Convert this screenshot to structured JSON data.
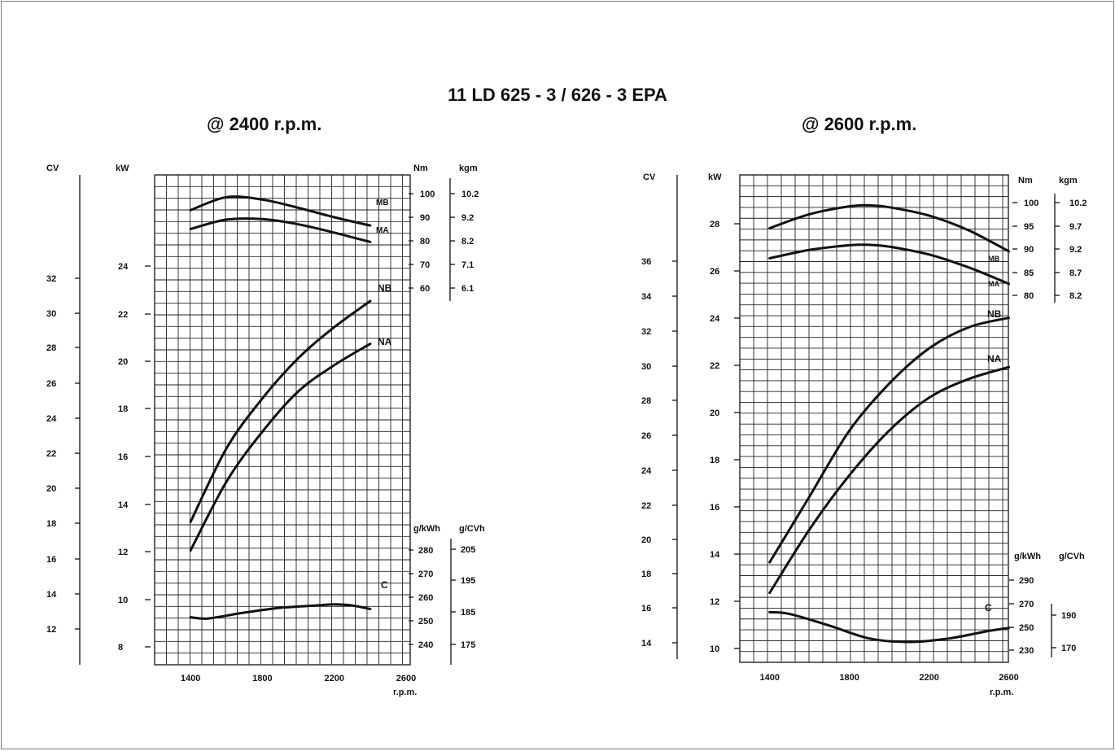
{
  "title": "11 LD 625 - 3 / 626 - 3 EPA",
  "colors": {
    "ink": "#111111",
    "grid": "#222222",
    "background": "#ffffff"
  },
  "chart_data": [
    {
      "type": "line",
      "subtitle": "@ 2400 r.p.m.",
      "xlabel": "r.p.m.",
      "x_ticks": [
        1400,
        1800,
        2200,
        2600
      ],
      "xlim": [
        1200,
        2600
      ],
      "grid": true,
      "axis_headers": {
        "cv": "CV",
        "kw": "kW",
        "nm": "Nm",
        "kgm": "kgm",
        "gkwh": "g/kWh",
        "gcvh": "g/CVh"
      },
      "axes": {
        "cv": {
          "ticks": [
            "32",
            "30",
            "28",
            "26",
            "24",
            "22",
            "20",
            "18",
            "16",
            "14",
            "12"
          ]
        },
        "kw": {
          "ticks": [
            "24",
            "22",
            "20",
            "18",
            "16",
            "14",
            "12",
            "10",
            "8"
          ]
        },
        "nm": {
          "ticks": [
            "100",
            "90",
            "80",
            "70",
            "60"
          ]
        },
        "kgm": {
          "ticks": [
            "10.2",
            "9.2",
            "8.2",
            "7.1",
            "6.1"
          ]
        },
        "gkwh": {
          "ticks": [
            "280",
            "270",
            "260",
            "250",
            "240"
          ]
        },
        "gcvh": {
          "ticks": [
            "205",
            "195",
            "185",
            "175"
          ]
        }
      },
      "series": [
        {
          "name": "MB",
          "axis": "Nm",
          "x": [
            1400,
            1600,
            1800,
            2000,
            2200,
            2400
          ],
          "y": [
            93,
            98.5,
            97.5,
            94,
            90,
            86.5
          ]
        },
        {
          "name": "MA",
          "axis": "Nm",
          "x": [
            1400,
            1600,
            1800,
            2000,
            2200,
            2400
          ],
          "y": [
            85,
            89,
            89.2,
            87,
            83.5,
            79.5
          ]
        },
        {
          "name": "NB",
          "axis": "kW",
          "x": [
            1400,
            1600,
            1800,
            2000,
            2200,
            2400
          ],
          "y": [
            13.5,
            16.6,
            18.7,
            20.4,
            21.7,
            22.8
          ]
        },
        {
          "name": "NA",
          "axis": "kW",
          "x": [
            1400,
            1600,
            1800,
            2000,
            2200,
            2400
          ],
          "y": [
            12.3,
            15.2,
            17.3,
            19,
            20.1,
            21.0
          ]
        },
        {
          "name": "C",
          "axis": "g/kWh",
          "x": [
            1400,
            1500,
            1700,
            1900,
            2100,
            2200,
            2300,
            2400
          ],
          "y": [
            251.5,
            251,
            253.5,
            255.5,
            256.5,
            257,
            256.5,
            255
          ]
        }
      ]
    },
    {
      "type": "line",
      "subtitle": "@ 2600 r.p.m.",
      "xlabel": "r.p.m.",
      "x_ticks": [
        1400,
        1800,
        2200,
        2600
      ],
      "xlim": [
        1250,
        2700
      ],
      "grid": true,
      "axis_headers": {
        "cv": "CV",
        "kw": "kW",
        "nm": "Nm",
        "kgm": "kgm",
        "gkwh": "g/kWh",
        "gcvh": "g/CVh"
      },
      "axes": {
        "cv": {
          "ticks": [
            "36",
            "34",
            "32",
            "30",
            "28",
            "26",
            "24",
            "22",
            "20",
            "18",
            "16",
            "14"
          ]
        },
        "kw": {
          "ticks": [
            "28",
            "26",
            "24",
            "22",
            "20",
            "18",
            "16",
            "14",
            "12",
            "10"
          ]
        },
        "nm": {
          "ticks": [
            "100",
            "95",
            "90",
            "85",
            "80"
          ]
        },
        "kgm": {
          "ticks": [
            "10.2",
            "9.7",
            "9.2",
            "8.7",
            "8.2"
          ]
        },
        "gkwh": {
          "ticks": [
            "290",
            "270",
            "250",
            "230"
          ]
        },
        "gcvh": {
          "ticks": [
            "190",
            "170"
          ]
        }
      },
      "series": [
        {
          "name": "MB",
          "axis": "Nm",
          "x": [
            1400,
            1600,
            1800,
            1900,
            2000,
            2200,
            2400,
            2600
          ],
          "y": [
            94.5,
            97.5,
            99.2,
            99.4,
            99,
            97.2,
            94,
            89.5
          ]
        },
        {
          "name": "MA",
          "axis": "Nm",
          "x": [
            1400,
            1600,
            1800,
            1900,
            2000,
            2200,
            2400,
            2600
          ],
          "y": [
            88,
            89.8,
            90.8,
            90.9,
            90.5,
            88.8,
            86,
            82.5
          ]
        },
        {
          "name": "NB",
          "axis": "kW",
          "x": [
            1400,
            1600,
            1800,
            2000,
            2200,
            2400,
            2600
          ],
          "y": [
            13.6,
            16.4,
            19.2,
            21.2,
            22.7,
            23.6,
            24.0
          ]
        },
        {
          "name": "NA",
          "axis": "kW",
          "x": [
            1400,
            1600,
            1800,
            2000,
            2200,
            2400,
            2600
          ],
          "y": [
            12.3,
            15.0,
            17.3,
            19.2,
            20.6,
            21.4,
            21.9
          ]
        },
        {
          "name": "C",
          "axis": "g/kWh",
          "x": [
            1400,
            1500,
            1700,
            1900,
            2100,
            2300,
            2500,
            2600
          ],
          "y": [
            262.5,
            261,
            251,
            240,
            237,
            240,
            246.5,
            249
          ]
        }
      ]
    }
  ]
}
